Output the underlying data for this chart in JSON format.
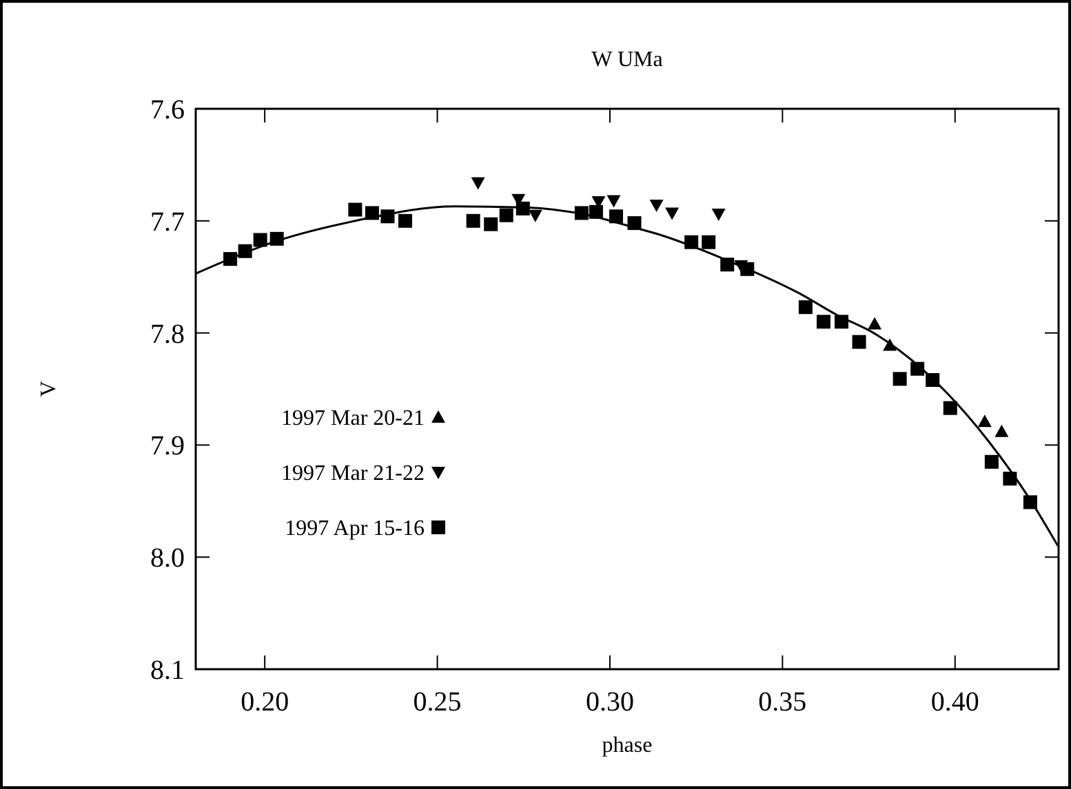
{
  "chart_data": {
    "type": "scatter",
    "title": "W UMa",
    "xlabel": "phase",
    "ylabel": "V",
    "xlim": [
      0.18,
      0.43
    ],
    "xticks": [
      {
        "value": 0.2,
        "label": "0.20"
      },
      {
        "value": 0.25,
        "label": "0.25"
      },
      {
        "value": 0.3,
        "label": "0.30"
      },
      {
        "value": 0.35,
        "label": "0.35"
      },
      {
        "value": 0.4,
        "label": "0.40"
      }
    ],
    "ylim": [
      8.1,
      7.6
    ],
    "yticks": [
      7.6,
      7.7,
      7.8,
      7.9,
      {
        "value": 8.0,
        "label": "8.0"
      },
      8.1
    ],
    "grid": false,
    "legend": "left",
    "series": [
      {
        "name": "1997 Mar 20-21",
        "color": "#000000",
        "marker": "triangle",
        "x": [
          0.3767,
          0.3811,
          0.4086,
          0.4135
        ],
        "values": [
          7.792,
          7.811,
          7.879,
          7.888
        ]
      },
      {
        "name": "1997 Mar 21-22",
        "color": "#000000",
        "marker": "triangle-down",
        "x": [
          0.2618,
          0.2735,
          0.2784,
          0.2967,
          0.3011,
          0.3135,
          0.318,
          0.3315,
          0.338
        ],
        "values": [
          7.666,
          7.681,
          7.695,
          7.683,
          7.682,
          7.686,
          7.693,
          7.694,
          7.74
        ]
      },
      {
        "name": "1997 Apr 15-16",
        "color": "#000000",
        "marker": "square",
        "x": [
          0.19,
          0.1943,
          0.1987,
          0.2035,
          0.2262,
          0.2311,
          0.2356,
          0.2407,
          0.2604,
          0.2655,
          0.27,
          0.2748,
          0.2918,
          0.296,
          0.3018,
          0.3071,
          0.3236,
          0.3286,
          0.334,
          0.3398,
          0.3567,
          0.3619,
          0.3671,
          0.3722,
          0.384,
          0.3891,
          0.3935,
          0.3986,
          0.4106,
          0.4159,
          0.4218
        ],
        "values": [
          7.734,
          7.727,
          7.717,
          7.716,
          7.69,
          7.693,
          7.696,
          7.7,
          7.7,
          7.703,
          7.695,
          7.689,
          7.693,
          7.692,
          7.696,
          7.702,
          7.719,
          7.719,
          7.739,
          7.743,
          7.777,
          7.79,
          7.79,
          7.808,
          7.841,
          7.832,
          7.842,
          7.867,
          7.915,
          7.93,
          7.951
        ]
      },
      {
        "type": "line",
        "color": "#000000",
        "marker": "none",
        "x": [
          0.18,
          0.2034,
          0.2262,
          0.2551,
          0.2751,
          0.2938,
          0.3071,
          0.3151,
          0.3338,
          0.3551,
          0.3658,
          0.3764,
          0.3978,
          0.4098,
          0.4218,
          0.4298
        ],
        "values": [
          7.747,
          7.718,
          7.7,
          7.687,
          7.688,
          7.695,
          7.706,
          7.713,
          7.735,
          7.765,
          7.784,
          7.8,
          7.854,
          7.897,
          7.949,
          7.99
        ]
      }
    ]
  }
}
